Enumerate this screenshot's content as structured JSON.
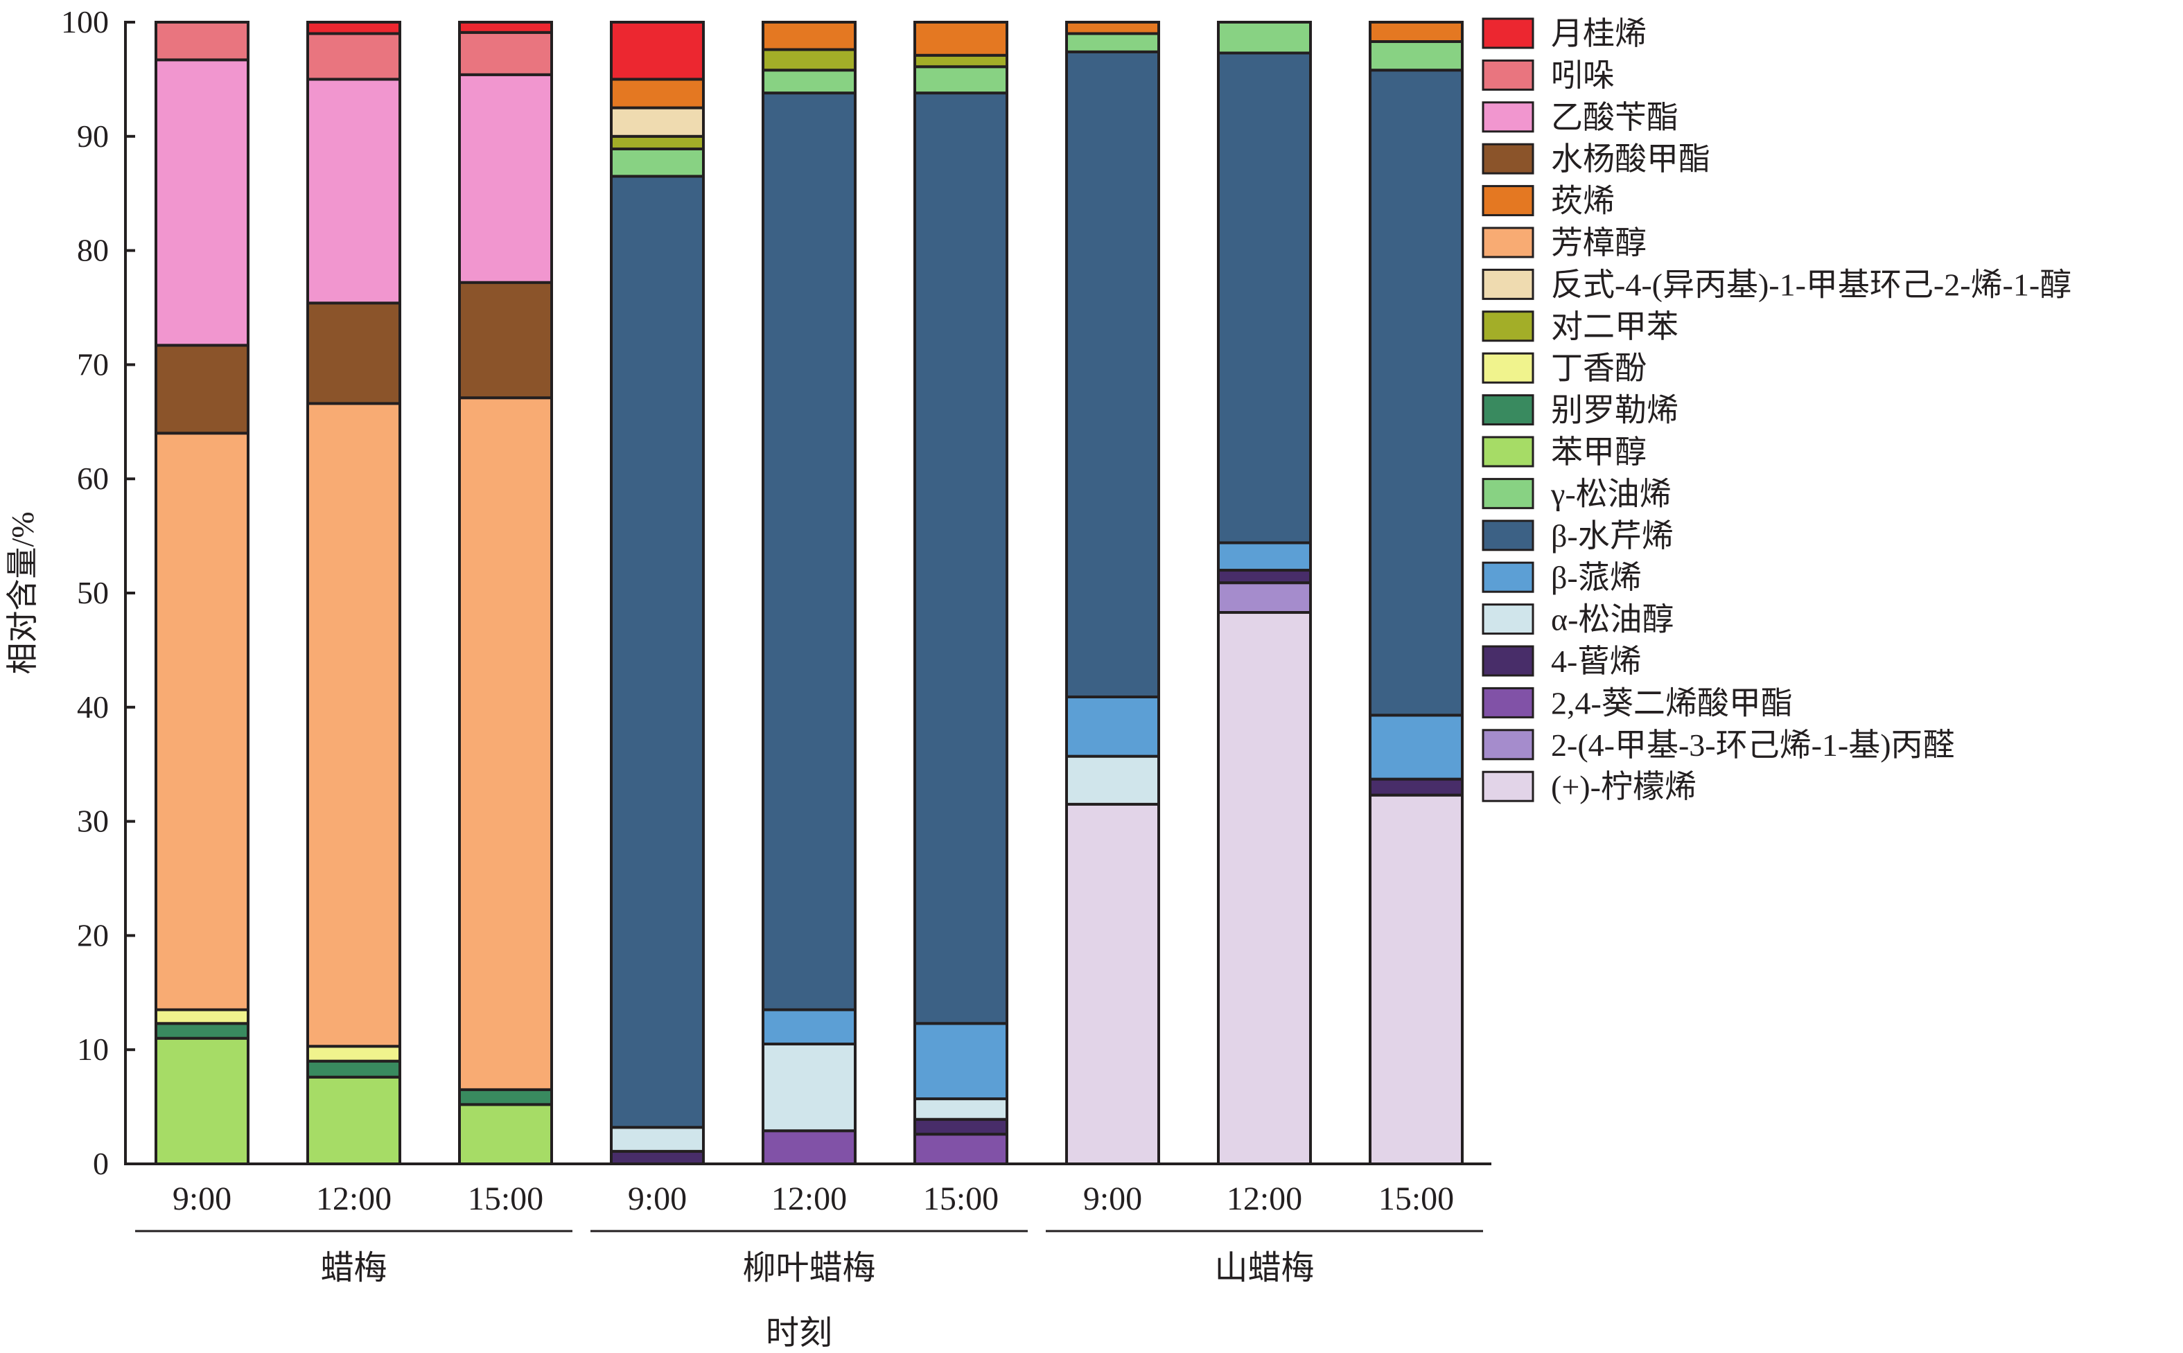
{
  "chart_data": {
    "type": "bar",
    "stacked": true,
    "ylabel": "相对含量/%",
    "xlabel": "时刻",
    "ylim": [
      0,
      100
    ],
    "yticks": [
      0,
      10,
      20,
      30,
      40,
      50,
      60,
      70,
      80,
      90,
      100
    ],
    "categories": [
      "9:00",
      "12:00",
      "15:00",
      "9:00",
      "12:00",
      "15:00",
      "9:00",
      "12:00",
      "15:00"
    ],
    "groups": [
      {
        "name": "蜡梅",
        "bars": [
          0,
          1,
          2
        ]
      },
      {
        "name": "柳叶蜡梅",
        "bars": [
          3,
          4,
          5
        ]
      },
      {
        "name": "山蜡梅",
        "bars": [
          6,
          7,
          8
        ]
      }
    ],
    "legend_position": "right",
    "series": [
      {
        "name": "(+)-柠檬烯",
        "color": "#e2d4e8",
        "values": [
          0,
          0,
          0,
          0,
          0,
          0,
          31.5,
          48.3,
          32.3
        ]
      },
      {
        "name": "2-(4-甲基-3-环己烯-1-基)丙醛",
        "color": "#a58ccc",
        "values": [
          0,
          0,
          0,
          0,
          0,
          0,
          0,
          2.6,
          0
        ]
      },
      {
        "name": "2,4-葵二烯酸甲酯",
        "color": "#8152a7",
        "values": [
          0,
          0,
          0,
          0,
          2.9,
          2.6,
          0,
          0,
          0
        ]
      },
      {
        "name": "4-蒈烯",
        "color": "#482d69",
        "values": [
          0,
          0,
          0,
          1.1,
          0,
          1.3,
          0,
          1.1,
          1.4
        ]
      },
      {
        "name": "α-松油醇",
        "color": "#d0e5eb",
        "values": [
          0,
          0,
          0,
          2.1,
          7.6,
          1.8,
          4.2,
          0,
          0
        ]
      },
      {
        "name": "β-蒎烯",
        "color": "#5c9fd5",
        "values": [
          0,
          0,
          0,
          0,
          3.0,
          6.6,
          5.2,
          2.4,
          5.6
        ]
      },
      {
        "name": "β-水芹烯",
        "color": "#3c6185",
        "values": [
          0,
          0,
          0,
          83.3,
          80.3,
          81.5,
          56.5,
          42.9,
          56.5
        ]
      },
      {
        "name": "γ-松油烯",
        "color": "#88d283",
        "values": [
          0,
          0,
          0,
          2.4,
          2.0,
          2.3,
          1.6,
          2.7,
          2.5
        ]
      },
      {
        "name": "苯甲醇",
        "color": "#a6dc66",
        "values": [
          11.0,
          7.6,
          5.2,
          0,
          0,
          0,
          0,
          0,
          0
        ]
      },
      {
        "name": "别罗勒烯",
        "color": "#398a5f",
        "values": [
          1.3,
          1.4,
          1.3,
          0,
          0,
          0,
          0,
          0,
          0
        ]
      },
      {
        "name": "丁香酚",
        "color": "#f0f38d",
        "values": [
          1.2,
          1.3,
          0,
          0,
          0,
          0,
          0,
          0,
          0
        ]
      },
      {
        "name": "对二甲苯",
        "color": "#a3ae28",
        "values": [
          0,
          0,
          0,
          1.1,
          1.8,
          1.0,
          0,
          0,
          0
        ]
      },
      {
        "name": "反式-4-(异丙基)-1-甲基环己-2-烯-1-醇",
        "color": "#efdbb0",
        "values": [
          0,
          0,
          0,
          2.5,
          0,
          0,
          0,
          0,
          0
        ]
      },
      {
        "name": "芳樟醇",
        "color": "#f8ab73",
        "values": [
          50.5,
          56.3,
          60.6,
          0,
          0,
          0,
          0,
          0,
          0
        ]
      },
      {
        "name": "莰烯",
        "color": "#e47822",
        "values": [
          0,
          0,
          0,
          2.5,
          2.4,
          2.9,
          1.0,
          0,
          1.7
        ]
      },
      {
        "name": "水杨酸甲酯",
        "color": "#8b542a",
        "values": [
          7.7,
          8.8,
          10.1,
          0,
          0,
          0,
          0,
          0,
          0
        ]
      },
      {
        "name": "乙酸苄酯",
        "color": "#f196cf",
        "values": [
          25.0,
          19.6,
          18.2,
          0,
          0,
          0,
          0,
          0,
          0
        ]
      },
      {
        "name": "吲哚",
        "color": "#e9757f",
        "values": [
          3.3,
          4.0,
          3.7,
          0,
          0,
          0,
          0,
          0,
          0
        ]
      },
      {
        "name": "月桂烯",
        "color": "#ec2730",
        "values": [
          0,
          1.0,
          0.9,
          5.0,
          0,
          0,
          0,
          0,
          0
        ]
      }
    ]
  }
}
